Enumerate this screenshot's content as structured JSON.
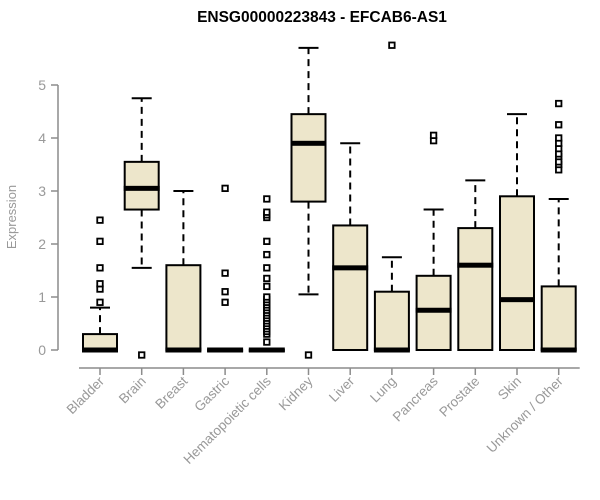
{
  "chart_data": {
    "type": "boxplot",
    "title": "ENSG00000223843 - EFCAB6-AS1",
    "ylabel": "Expression",
    "xlabel": "",
    "ylim": [
      0,
      5.8
    ],
    "yticks": [
      0,
      1,
      2,
      3,
      4,
      5
    ],
    "grid": false,
    "legend": "none",
    "categories": [
      "Bladder",
      "Brain",
      "Breast",
      "Gastric",
      "Hematopoietic cells",
      "Kidney",
      "Liver",
      "Lung",
      "Pancreas",
      "Prostate",
      "Skin",
      "Unknown / Other"
    ],
    "series": [
      {
        "name": "Bladder",
        "q1": 0,
        "median": 0,
        "q3": 0.3,
        "whisker_low": 0,
        "whisker_high": 0.8,
        "outliers": [
          0.9,
          1.15,
          1.25,
          1.55,
          2.05,
          2.45
        ]
      },
      {
        "name": "Brain",
        "q1": 2.65,
        "median": 3.05,
        "q3": 3.55,
        "whisker_low": 1.55,
        "whisker_high": 4.75,
        "outliers": [
          0
        ]
      },
      {
        "name": "Breast",
        "q1": 0,
        "median": 0,
        "q3": 1.6,
        "whisker_low": 0,
        "whisker_high": 3.0,
        "outliers": []
      },
      {
        "name": "Gastric",
        "q1": 0,
        "median": 0,
        "q3": 0,
        "whisker_low": 0,
        "whisker_high": 0,
        "outliers": [
          0.9,
          1.1,
          1.45,
          3.05
        ]
      },
      {
        "name": "Hematopoietic cells",
        "q1": 0,
        "median": 0,
        "q3": 0,
        "whisker_low": 0,
        "whisker_high": 0,
        "outliers": [
          0.15,
          0.3,
          0.35,
          0.4,
          0.45,
          0.5,
          0.55,
          0.6,
          0.65,
          0.7,
          0.75,
          0.8,
          0.85,
          0.9,
          0.95,
          1.0,
          1.2,
          1.35,
          1.55,
          1.8,
          2.05,
          2.5,
          2.55,
          2.6,
          2.85
        ]
      },
      {
        "name": "Kidney",
        "q1": 2.8,
        "median": 3.9,
        "q3": 4.45,
        "whisker_low": 1.05,
        "whisker_high": 5.7,
        "outliers": [
          0
        ]
      },
      {
        "name": "Liver",
        "q1": 0,
        "median": 1.55,
        "q3": 2.35,
        "whisker_low": 0,
        "whisker_high": 3.9,
        "outliers": []
      },
      {
        "name": "Lung",
        "q1": 0,
        "median": 0,
        "q3": 1.1,
        "whisker_low": 0,
        "whisker_high": 1.75,
        "outliers": [
          5.75
        ]
      },
      {
        "name": "Pancreas",
        "q1": 0,
        "median": 0.75,
        "q3": 1.4,
        "whisker_low": 0,
        "whisker_high": 2.65,
        "outliers": [
          3.95,
          4.05
        ]
      },
      {
        "name": "Prostate",
        "q1": 0,
        "median": 1.6,
        "q3": 2.3,
        "whisker_low": 0,
        "whisker_high": 3.2,
        "outliers": []
      },
      {
        "name": "Skin",
        "q1": 0,
        "median": 0.95,
        "q3": 2.9,
        "whisker_low": 0,
        "whisker_high": 4.45,
        "outliers": []
      },
      {
        "name": "Unknown / Other",
        "q1": 0,
        "median": 0,
        "q3": 1.2,
        "whisker_low": 0,
        "whisker_high": 2.85,
        "outliers": [
          3.4,
          3.5,
          3.55,
          3.65,
          3.7,
          3.8,
          3.9,
          4.0,
          4.25,
          4.65
        ]
      }
    ],
    "colors": {
      "box_fill": "#EDE6CB",
      "box_border": "#000000",
      "median": "#000000",
      "whisker": "#000000",
      "outlier_stroke": "#000000",
      "outlier_fill": "#ffffff",
      "axis_line": "#8C8C8C",
      "tick_label": "#999999",
      "title_color": "#000000",
      "background": "#FFFFFF"
    }
  }
}
